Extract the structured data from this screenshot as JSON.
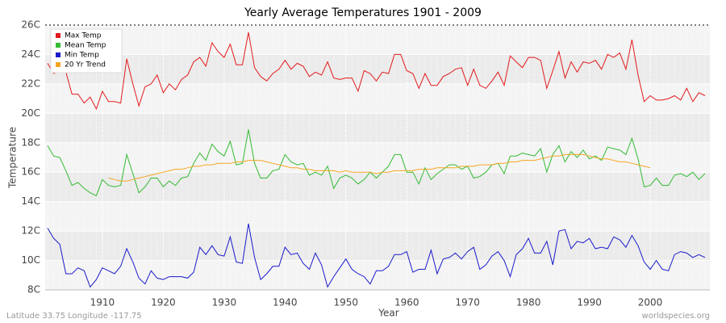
{
  "chart_data": {
    "type": "line",
    "title": "Yearly Average Temperatures 1901 - 2009",
    "xlabel": "Year",
    "ylabel": "Temperature",
    "footer_left": "Latitude 33.75 Longitude -117.75",
    "footer_right": "worldspecies.org",
    "legend": "top-left",
    "grid": true,
    "xlim": [
      1900.6,
      2009.8
    ],
    "xticks": [
      1910,
      1920,
      1930,
      1940,
      1950,
      1960,
      1970,
      1980,
      1990,
      2000
    ],
    "ylim": [
      8,
      26
    ],
    "yticks": [
      {
        "value": 8,
        "label": "8C"
      },
      {
        "value": 10,
        "label": "10C"
      },
      {
        "value": 12,
        "label": "12C"
      },
      {
        "value": 14,
        "label": "14C"
      },
      {
        "value": 16,
        "label": "16C"
      },
      {
        "value": 18,
        "label": "18C"
      },
      {
        "value": 20,
        "label": "20C"
      },
      {
        "value": 22,
        "label": "22C"
      },
      {
        "value": 24,
        "label": "24C"
      },
      {
        "value": 26,
        "label": "26C"
      }
    ],
    "x": [
      1901,
      1902,
      1903,
      1904,
      1905,
      1906,
      1907,
      1908,
      1909,
      1910,
      1911,
      1912,
      1913,
      1914,
      1915,
      1916,
      1917,
      1918,
      1919,
      1920,
      1921,
      1922,
      1923,
      1924,
      1925,
      1926,
      1927,
      1928,
      1929,
      1930,
      1931,
      1932,
      1933,
      1934,
      1935,
      1936,
      1937,
      1938,
      1939,
      1940,
      1941,
      1942,
      1943,
      1944,
      1945,
      1946,
      1947,
      1948,
      1949,
      1950,
      1951,
      1952,
      1953,
      1954,
      1955,
      1956,
      1957,
      1958,
      1959,
      1960,
      1961,
      1962,
      1963,
      1964,
      1965,
      1966,
      1967,
      1968,
      1969,
      1970,
      1971,
      1972,
      1973,
      1974,
      1975,
      1976,
      1977,
      1978,
      1979,
      1980,
      1981,
      1982,
      1983,
      1984,
      1985,
      1986,
      1987,
      1988,
      1989,
      1990,
      1991,
      1992,
      1993,
      1994,
      1995,
      1996,
      1997,
      1998,
      1999,
      2000,
      2001,
      2002,
      2003,
      2004,
      2005,
      2006,
      2007,
      2008,
      2009
    ],
    "series": [
      {
        "name": "Max Temp",
        "color": "#e31a1c",
        "values": [
          23.4,
          22.7,
          22.9,
          22.8,
          21.3,
          21.3,
          20.7,
          21.1,
          20.3,
          21.5,
          20.8,
          20.8,
          20.7,
          23.7,
          22.0,
          20.5,
          21.8,
          22.0,
          22.6,
          21.4,
          22.0,
          21.6,
          22.3,
          22.6,
          23.5,
          23.8,
          23.2,
          24.8,
          24.2,
          23.8,
          24.7,
          23.3,
          23.3,
          25.5,
          23.1,
          22.5,
          22.2,
          22.7,
          23.0,
          23.6,
          23.0,
          23.4,
          23.2,
          22.5,
          22.8,
          22.6,
          23.5,
          22.4,
          22.3,
          22.4,
          22.4,
          21.5,
          22.9,
          22.7,
          22.2,
          22.8,
          22.7,
          24.0,
          24.0,
          22.9,
          22.7,
          21.7,
          22.7,
          21.9,
          21.9,
          22.5,
          22.7,
          23.0,
          23.1,
          21.9,
          23.0,
          21.9,
          21.7,
          22.2,
          22.8,
          21.9,
          23.9,
          23.5,
          23.1,
          23.8,
          23.8,
          23.6,
          21.7,
          22.9,
          24.2,
          22.4,
          23.5,
          22.8,
          23.5,
          23.4,
          23.6,
          23.0,
          24.0,
          23.8,
          24.1,
          23.0,
          25.0,
          22.6,
          20.8,
          21.2,
          20.9,
          20.9,
          21.0,
          21.2,
          20.9,
          21.7,
          20.8,
          21.4,
          21.2
        ]
      },
      {
        "name": "Mean Temp",
        "color": "#33bb33",
        "values": [
          17.8,
          17.1,
          17.0,
          16.1,
          15.1,
          15.3,
          14.9,
          14.6,
          14.4,
          15.5,
          15.1,
          15.0,
          15.1,
          17.2,
          15.9,
          14.6,
          15.0,
          15.6,
          15.6,
          15.0,
          15.4,
          15.1,
          15.6,
          15.7,
          16.6,
          17.3,
          16.8,
          17.9,
          17.4,
          17.1,
          18.1,
          16.5,
          16.6,
          18.9,
          16.6,
          15.6,
          15.6,
          16.1,
          16.2,
          17.2,
          16.7,
          16.5,
          16.6,
          15.8,
          16.0,
          15.8,
          16.4,
          14.9,
          15.6,
          15.8,
          15.6,
          15.2,
          15.5,
          16.0,
          15.6,
          16.0,
          16.4,
          17.2,
          17.2,
          16.0,
          16.0,
          15.2,
          16.3,
          15.5,
          15.9,
          16.2,
          16.5,
          16.5,
          16.2,
          16.4,
          15.6,
          15.7,
          16.0,
          16.5,
          16.6,
          15.9,
          17.1,
          17.1,
          17.3,
          17.2,
          17.1,
          17.6,
          16.0,
          17.2,
          17.8,
          16.7,
          17.4,
          17.0,
          17.5,
          16.9,
          17.1,
          16.8,
          17.7,
          17.6,
          17.5,
          17.2,
          18.3,
          16.9,
          15.0,
          15.1,
          15.6,
          15.1,
          15.1,
          15.8,
          15.9,
          15.7,
          16.0,
          15.5,
          15.9
        ]
      },
      {
        "name": "Min Temp",
        "color": "#1a1acc",
        "values": [
          12.2,
          11.5,
          11.1,
          9.1,
          9.1,
          9.5,
          9.3,
          8.2,
          8.7,
          9.5,
          9.3,
          9.1,
          9.6,
          10.8,
          9.9,
          8.8,
          8.4,
          9.3,
          8.8,
          8.7,
          8.9,
          8.9,
          8.9,
          8.8,
          9.2,
          10.9,
          10.4,
          11.0,
          10.4,
          10.3,
          11.6,
          9.9,
          9.8,
          12.5,
          10.2,
          8.7,
          9.1,
          9.6,
          9.6,
          10.9,
          10.4,
          10.5,
          9.8,
          9.4,
          10.5,
          9.7,
          8.2,
          8.9,
          9.5,
          10.1,
          9.4,
          9.1,
          8.9,
          8.4,
          9.3,
          9.3,
          9.6,
          10.4,
          10.4,
          10.6,
          9.2,
          9.4,
          9.4,
          10.7,
          9.1,
          10.1,
          10.2,
          10.5,
          10.1,
          10.6,
          10.9,
          9.4,
          9.7,
          10.3,
          10.6,
          10.0,
          8.9,
          10.4,
          10.8,
          11.5,
          10.5,
          10.5,
          11.3,
          9.7,
          12.0,
          12.1,
          10.8,
          11.3,
          11.2,
          11.5,
          10.8,
          10.9,
          10.8,
          11.6,
          11.4,
          10.9,
          11.7,
          11.0,
          9.9,
          9.4,
          10.0,
          9.4,
          9.3,
          10.4,
          10.6,
          10.5,
          10.2,
          10.4,
          10.2
        ]
      },
      {
        "name": "20 Yr Trend",
        "color": "#f5a623",
        "values": [
          null,
          null,
          null,
          null,
          null,
          null,
          null,
          null,
          null,
          null,
          15.6,
          15.5,
          15.4,
          15.4,
          15.5,
          15.6,
          15.7,
          15.8,
          15.9,
          16.0,
          16.1,
          16.2,
          16.2,
          16.3,
          16.4,
          16.4,
          16.5,
          16.5,
          16.6,
          16.6,
          16.6,
          16.7,
          16.7,
          16.8,
          16.8,
          16.8,
          16.7,
          16.6,
          16.5,
          16.4,
          16.3,
          16.3,
          16.2,
          16.2,
          16.1,
          16.1,
          16.1,
          16.1,
          16.0,
          16.1,
          16.0,
          16.0,
          16.0,
          16.0,
          15.9,
          16.0,
          16.0,
          16.1,
          16.1,
          16.1,
          16.1,
          16.2,
          16.2,
          16.2,
          16.3,
          16.3,
          16.3,
          16.3,
          16.4,
          16.4,
          16.4,
          16.5,
          16.5,
          16.5,
          16.6,
          16.6,
          16.7,
          16.7,
          16.8,
          16.8,
          16.8,
          16.9,
          17.0,
          17.1,
          17.1,
          17.2,
          17.2,
          17.2,
          17.2,
          17.1,
          17.0,
          16.9,
          16.9,
          16.8,
          16.7,
          16.7,
          16.6,
          16.5,
          16.4,
          16.3,
          null,
          null,
          null,
          null,
          null,
          null,
          null,
          null,
          null
        ]
      }
    ]
  }
}
